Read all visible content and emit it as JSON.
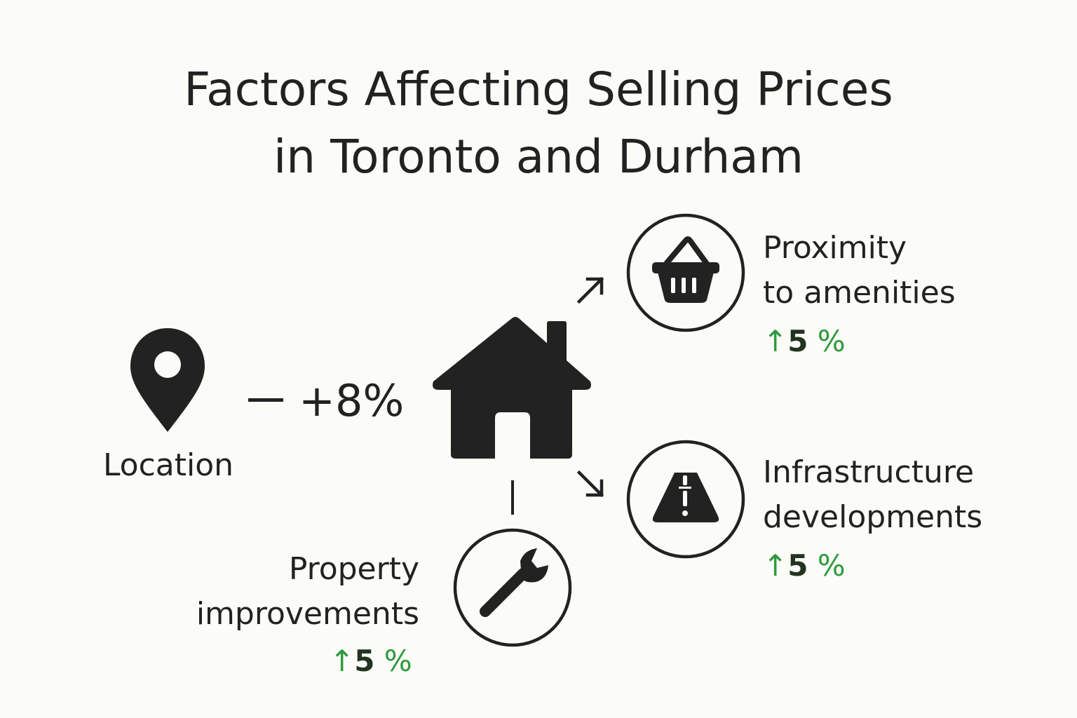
{
  "title": {
    "line1": "Factors Affecting Selling Prices",
    "line2": "in Toronto and Durham"
  },
  "location": {
    "label": "Location",
    "effect": "+8%"
  },
  "proximity": {
    "label_line1": "Proximity",
    "label_line2": "to amenities",
    "arrow": "↑",
    "value": "5",
    "unit": "%"
  },
  "infrastructure": {
    "label_line1": "Infrastructure",
    "label_line2": "developments",
    "arrow": "↑",
    "value": "5",
    "unit": "%"
  },
  "property": {
    "label_line1": "Property",
    "label_line2": "improvements",
    "arrow": "↑",
    "value": "5",
    "unit": "%"
  },
  "icons": {
    "center": "house-icon",
    "location": "map-pin-icon",
    "proximity": "shopping-basket-icon",
    "infrastructure": "road-icon",
    "property": "wrench-icon"
  },
  "colors": {
    "background": "#fbfbf7",
    "ink": "#222222",
    "accent_green": "#2e9a3e"
  }
}
